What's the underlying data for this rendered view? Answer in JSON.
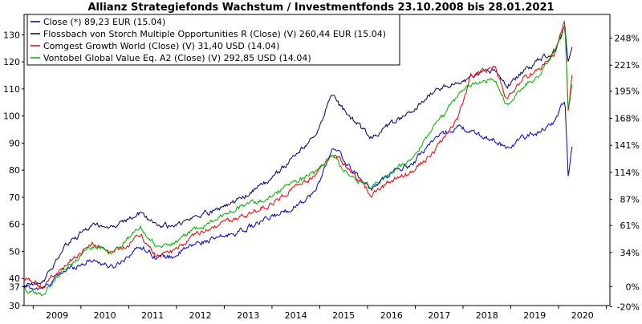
{
  "chart_data": {
    "type": "line",
    "title": "Allianz Strategiefonds Wachstum / Investmentfonds 23.10.2008 bis 28.01.2021",
    "xlabel": "",
    "ylabel": "",
    "x_ticks": [
      "2009",
      "2010",
      "2011",
      "2012",
      "2013",
      "2014",
      "2015",
      "2016",
      "2017",
      "2018",
      "2019",
      "2020"
    ],
    "y_left_ticks": [
      30,
      37,
      40,
      50,
      60,
      70,
      80,
      90,
      100,
      110,
      120,
      130
    ],
    "y_right_ticks": [
      "-20%",
      "0%",
      "34%",
      "61%",
      "87%",
      "114%",
      "141%",
      "168%",
      "195%",
      "221%",
      "248%"
    ],
    "ylim": [
      30,
      137.5
    ],
    "legend_position": "top-left",
    "grid": false,
    "series": [
      {
        "name": "Close (*) 89,23 EUR (15.04)",
        "color": "#0000cc",
        "x": [
          "2008-10-23",
          "2009-03-09",
          "2009-09",
          "2010-04",
          "2010-09",
          "2011-04",
          "2011-08",
          "2011-12",
          "2012-06",
          "2012-12",
          "2013-06",
          "2013-12",
          "2014-06",
          "2014-12",
          "2015-04",
          "2015-06",
          "2015-09",
          "2016-02",
          "2016-08",
          "2016-12",
          "2017-06",
          "2017-12",
          "2018-03",
          "2018-09",
          "2018-12",
          "2019-04",
          "2019-08",
          "2019-12",
          "2020-02-19",
          "2020-03-16",
          "2020-04-15"
        ],
        "y": [
          37,
          36,
          43,
          47,
          44,
          52,
          48,
          48,
          53,
          55,
          58,
          62,
          66,
          72,
          88,
          86,
          80,
          73,
          80,
          82,
          92,
          96,
          94,
          91,
          88,
          92,
          94,
          98,
          106,
          77,
          89
        ]
      },
      {
        "name": "Flossbach von Storch Multiple Opportunities R (Close) (V) 260,44 EUR (15.04)",
        "color": "#000066",
        "x": [
          "2008-10-23",
          "2009-03-09",
          "2009-09",
          "2010-04",
          "2010-09",
          "2011-04",
          "2011-08",
          "2011-12",
          "2012-06",
          "2012-12",
          "2013-06",
          "2013-12",
          "2014-06",
          "2014-12",
          "2015-04",
          "2015-06",
          "2015-09",
          "2016-02",
          "2016-08",
          "2016-12",
          "2017-06",
          "2017-12",
          "2018-03",
          "2018-09",
          "2018-12",
          "2019-04",
          "2019-08",
          "2019-12",
          "2020-02-19",
          "2020-03-16",
          "2020-04-15"
        ],
        "y": [
          37,
          38,
          52,
          60,
          59,
          64,
          60,
          59,
          63,
          66,
          70,
          76,
          84,
          93,
          108,
          104,
          99,
          92,
          98,
          101,
          110,
          112,
          114,
          117,
          111,
          116,
          121,
          124,
          133,
          119,
          127
        ]
      },
      {
        "name": "Comgest Growth World (Close) (V) 31,40 USD (14.04)",
        "color": "#ee0000",
        "x": [
          "2008-10-23",
          "2009-03-09",
          "2009-09",
          "2010-04",
          "2010-09",
          "2011-04",
          "2011-08",
          "2011-12",
          "2012-06",
          "2012-12",
          "2013-06",
          "2013-12",
          "2014-06",
          "2014-12",
          "2015-04",
          "2015-06",
          "2015-09",
          "2016-02",
          "2016-08",
          "2016-12",
          "2017-06",
          "2017-12",
          "2018-03",
          "2018-09",
          "2018-12",
          "2019-04",
          "2019-08",
          "2019-12",
          "2020-02-19",
          "2020-03-16",
          "2020-04-15"
        ],
        "y": [
          40,
          37,
          45,
          53,
          49,
          56,
          48,
          50,
          56,
          60,
          63,
          67,
          73,
          78,
          86,
          84,
          79,
          71,
          77,
          79,
          87,
          100,
          115,
          118,
          106,
          114,
          117,
          123,
          135,
          100,
          116
        ]
      },
      {
        "name": "Vontobel Global Value Eq. A2 (Close) (V) 292,85 USD (14.04)",
        "color": "#00aa00",
        "x": [
          "2008-10-23",
          "2009-03-09",
          "2009-09",
          "2010-04",
          "2010-09",
          "2011-04",
          "2011-08",
          "2011-12",
          "2012-06",
          "2012-12",
          "2013-06",
          "2013-12",
          "2014-06",
          "2014-12",
          "2015-04",
          "2015-06",
          "2015-09",
          "2016-02",
          "2016-08",
          "2016-12",
          "2017-06",
          "2017-12",
          "2018-03",
          "2018-09",
          "2018-12",
          "2019-04",
          "2019-08",
          "2019-12",
          "2020-02-19",
          "2020-03-16",
          "2020-04-15"
        ],
        "y": [
          36,
          34,
          44,
          52,
          50,
          59,
          52,
          53,
          58,
          63,
          67,
          70,
          75,
          79,
          85,
          82,
          78,
          74,
          80,
          84,
          96,
          108,
          112,
          114,
          104,
          111,
          115,
          124,
          133,
          102,
          112
        ]
      }
    ]
  }
}
